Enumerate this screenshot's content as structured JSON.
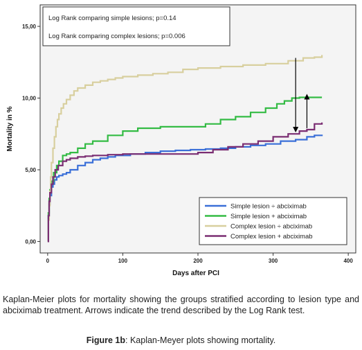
{
  "chart_data": {
    "type": "line",
    "xlabel": "Days after PCI",
    "ylabel": "Mortality in %",
    "xlim": [
      -10,
      410
    ],
    "ylim": [
      -0.8,
      16.5
    ],
    "x_ticks": [
      0,
      100,
      200,
      300,
      400
    ],
    "x_tick_labels": [
      "0",
      "100",
      "200",
      "300",
      "400"
    ],
    "y_ticks": [
      0,
      5,
      10,
      15
    ],
    "y_tick_labels": [
      "0,00",
      "5,00",
      "10,00",
      "15,00"
    ],
    "grid": false,
    "legend_placement": "bottom-right",
    "annotations": [
      "Log Rank comparing simple lesions; p=0.14",
      "Log Rank comparing complex lesions; p=0.006"
    ],
    "arrows": [
      {
        "x": 330,
        "from_y": 12.8,
        "to_y": 7.8
      },
      {
        "x": 345,
        "from_y": 7.9,
        "to_y": 10.1
      }
    ],
    "series": [
      {
        "name": "Simple lesion ÷ abciximab",
        "color": "#3a6fd8",
        "x": [
          0,
          1,
          2,
          3,
          5,
          7,
          9,
          12,
          15,
          20,
          25,
          30,
          40,
          50,
          60,
          70,
          80,
          90,
          100,
          110,
          130,
          150,
          170,
          190,
          210,
          230,
          250,
          270,
          290,
          310,
          330,
          345,
          355,
          365
        ],
        "y": [
          0,
          1.8,
          2.6,
          3.2,
          3.8,
          4.0,
          4.3,
          4.5,
          4.6,
          4.7,
          4.8,
          5.0,
          5.3,
          5.5,
          5.7,
          5.8,
          5.9,
          6.0,
          6.0,
          6.1,
          6.2,
          6.3,
          6.35,
          6.4,
          6.45,
          6.5,
          6.6,
          6.7,
          6.8,
          7.0,
          7.1,
          7.3,
          7.4,
          7.45
        ]
      },
      {
        "name": "Simple lesion + abciximab",
        "color": "#33bb44",
        "x": [
          0,
          1,
          2,
          3,
          5,
          8,
          12,
          15,
          20,
          25,
          30,
          40,
          50,
          60,
          80,
          100,
          120,
          150,
          180,
          210,
          230,
          250,
          270,
          290,
          305,
          315,
          325,
          335,
          345,
          365
        ],
        "y": [
          0,
          2.0,
          3.0,
          3.6,
          4.2,
          4.8,
          5.3,
          5.6,
          6.0,
          6.1,
          6.2,
          6.5,
          6.8,
          7.0,
          7.4,
          7.7,
          7.9,
          8.0,
          8.0,
          8.2,
          8.5,
          8.7,
          9.0,
          9.3,
          9.6,
          9.8,
          10.0,
          10.05,
          10.05,
          10.05
        ]
      },
      {
        "name": "Complex lesion ÷ abciximab",
        "color": "#d8cf9e",
        "x": [
          0,
          1,
          2,
          3,
          4,
          5,
          7,
          9,
          11,
          13,
          15,
          18,
          21,
          25,
          30,
          35,
          40,
          50,
          60,
          70,
          80,
          90,
          100,
          120,
          140,
          160,
          180,
          200,
          230,
          260,
          290,
          320,
          340,
          355,
          365
        ],
        "y": [
          0,
          1.5,
          2.5,
          3.5,
          4.5,
          5.5,
          6.5,
          7.3,
          8.0,
          8.5,
          8.9,
          9.3,
          9.6,
          9.9,
          10.2,
          10.5,
          10.7,
          10.9,
          11.1,
          11.2,
          11.3,
          11.4,
          11.5,
          11.6,
          11.7,
          11.8,
          12.0,
          12.1,
          12.2,
          12.3,
          12.4,
          12.6,
          12.8,
          12.85,
          13.0
        ]
      },
      {
        "name": "Complex lesion + abciximab",
        "color": "#7a2d72",
        "x": [
          0,
          1,
          2,
          3,
          5,
          7,
          10,
          14,
          20,
          25,
          30,
          40,
          50,
          60,
          80,
          100,
          130,
          160,
          190,
          200,
          220,
          240,
          260,
          280,
          300,
          320,
          335,
          345,
          355,
          365
        ],
        "y": [
          0,
          1.8,
          2.8,
          3.4,
          4.0,
          4.5,
          5.0,
          5.3,
          5.6,
          5.7,
          5.8,
          5.9,
          5.95,
          6.0,
          6.05,
          6.1,
          6.1,
          6.1,
          6.1,
          6.2,
          6.4,
          6.6,
          6.8,
          7.0,
          7.3,
          7.5,
          7.7,
          7.8,
          8.2,
          8.3
        ]
      }
    ]
  },
  "caption": "Kaplan-Meier plots for mortality showing the groups stratified according to lesion type and abciximab treatment. Arrows indicate the trend described by the Log Rank test.",
  "figure_label": "Figure 1b",
  "figure_title": ": Kaplan-Meyer plots showing mortality."
}
